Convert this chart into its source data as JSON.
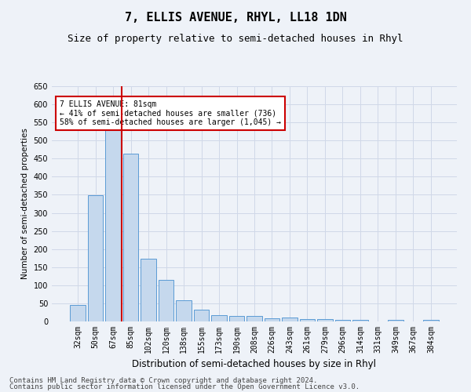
{
  "title": "7, ELLIS AVENUE, RHYL, LL18 1DN",
  "subtitle": "Size of property relative to semi-detached houses in Rhyl",
  "xlabel": "Distribution of semi-detached houses by size in Rhyl",
  "ylabel": "Number of semi-detached properties",
  "categories": [
    "32sqm",
    "50sqm",
    "67sqm",
    "85sqm",
    "102sqm",
    "120sqm",
    "138sqm",
    "155sqm",
    "173sqm",
    "190sqm",
    "208sqm",
    "226sqm",
    "243sqm",
    "261sqm",
    "279sqm",
    "296sqm",
    "314sqm",
    "331sqm",
    "349sqm",
    "367sqm",
    "384sqm"
  ],
  "values": [
    45,
    348,
    535,
    463,
    174,
    115,
    58,
    33,
    18,
    15,
    15,
    9,
    10,
    7,
    6,
    5,
    4,
    0,
    5,
    0,
    5
  ],
  "bar_color": "#c5d8ed",
  "bar_edge_color": "#5b9bd5",
  "highlight_index": 2,
  "vline_color": "#cc0000",
  "annotation_text": "7 ELLIS AVENUE: 81sqm\n← 41% of semi-detached houses are smaller (736)\n58% of semi-detached houses are larger (1,045) →",
  "annotation_box_color": "#ffffff",
  "annotation_box_edge": "#cc0000",
  "ylim": [
    0,
    650
  ],
  "yticks": [
    0,
    50,
    100,
    150,
    200,
    250,
    300,
    350,
    400,
    450,
    500,
    550,
    600,
    650
  ],
  "grid_color": "#d0d8e8",
  "background_color": "#eef2f8",
  "footer_line1": "Contains HM Land Registry data © Crown copyright and database right 2024.",
  "footer_line2": "Contains public sector information licensed under the Open Government Licence v3.0.",
  "title_fontsize": 11,
  "subtitle_fontsize": 9,
  "xlabel_fontsize": 8.5,
  "ylabel_fontsize": 7.5,
  "tick_fontsize": 7,
  "footer_fontsize": 6.5
}
